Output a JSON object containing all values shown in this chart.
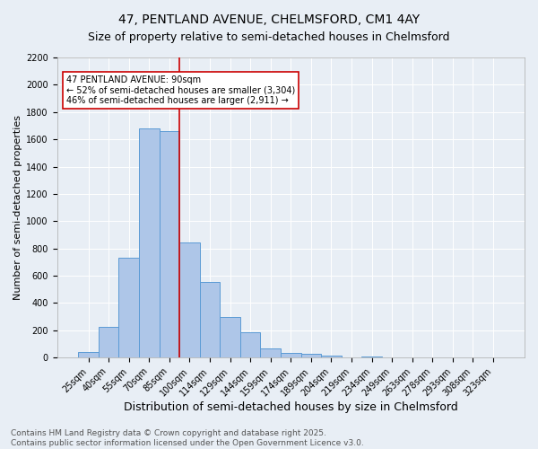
{
  "title": "47, PENTLAND AVENUE, CHELMSFORD, CM1 4AY",
  "subtitle": "Size of property relative to semi-detached houses in Chelmsford",
  "xlabel": "Distribution of semi-detached houses by size in Chelmsford",
  "ylabel": "Number of semi-detached properties",
  "categories": [
    "25sqm",
    "40sqm",
    "55sqm",
    "70sqm",
    "85sqm",
    "100sqm",
    "114sqm",
    "129sqm",
    "144sqm",
    "159sqm",
    "174sqm",
    "189sqm",
    "204sqm",
    "219sqm",
    "234sqm",
    "249sqm",
    "263sqm",
    "278sqm",
    "293sqm",
    "308sqm",
    "323sqm"
  ],
  "values": [
    40,
    225,
    730,
    1680,
    1660,
    845,
    555,
    300,
    185,
    65,
    35,
    25,
    15,
    0,
    10,
    0,
    0,
    0,
    0,
    0,
    0
  ],
  "bar_color": "#aec6e8",
  "bar_edge_color": "#5b9bd5",
  "vline_color": "#cc0000",
  "annotation_text": "47 PENTLAND AVENUE: 90sqm\n← 52% of semi-detached houses are smaller (3,304)\n46% of semi-detached houses are larger (2,911) →",
  "annotation_box_color": "#ffffff",
  "annotation_edge_color": "#cc0000",
  "ylim": [
    0,
    2200
  ],
  "yticks": [
    0,
    200,
    400,
    600,
    800,
    1000,
    1200,
    1400,
    1600,
    1800,
    2000,
    2200
  ],
  "bg_color": "#e8eef5",
  "plot_bg_color": "#e8eef5",
  "grid_color": "#ffffff",
  "footer_line1": "Contains HM Land Registry data © Crown copyright and database right 2025.",
  "footer_line2": "Contains public sector information licensed under the Open Government Licence v3.0.",
  "title_fontsize": 10,
  "subtitle_fontsize": 9,
  "xlabel_fontsize": 9,
  "ylabel_fontsize": 8,
  "tick_fontsize": 7,
  "footer_fontsize": 6.5,
  "annotation_fontsize": 7
}
